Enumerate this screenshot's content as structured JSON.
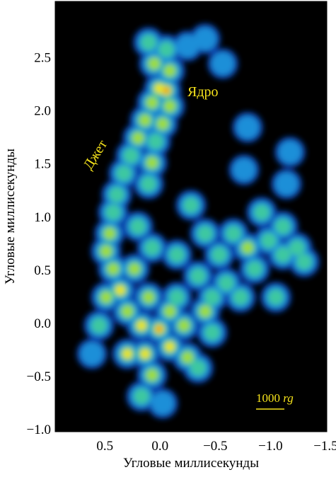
{
  "chart_data": {
    "type": "image",
    "xlabel": "Угловые миллисекунды",
    "ylabel": "Угловые миллисекунды",
    "xlim": [
      0.95,
      -1.51
    ],
    "ylim": [
      -1.02,
      3.03
    ],
    "xticks": [
      0.5,
      {
        "value": 0,
        "label": "0.0"
      },
      {
        "value": -0.5,
        "label": "−0.5"
      },
      {
        "value": -1,
        "label": "−1.0"
      },
      {
        "value": -1.5,
        "label": "−1.5"
      }
    ],
    "yticks": [
      {
        "value": -1,
        "label": "−1.0"
      },
      {
        "value": -0.5,
        "label": "−0.5"
      },
      {
        "value": 0,
        "label": "0.0"
      },
      0.5,
      {
        "value": 1,
        "label": "1.0"
      },
      1.5,
      {
        "value": 2,
        "label": "2.0"
      },
      2.5
    ],
    "annotations": [
      "Ядро",
      "Джет"
    ],
    "scale_bar": {
      "label": "1000",
      "unit": "rg"
    }
  }
}
